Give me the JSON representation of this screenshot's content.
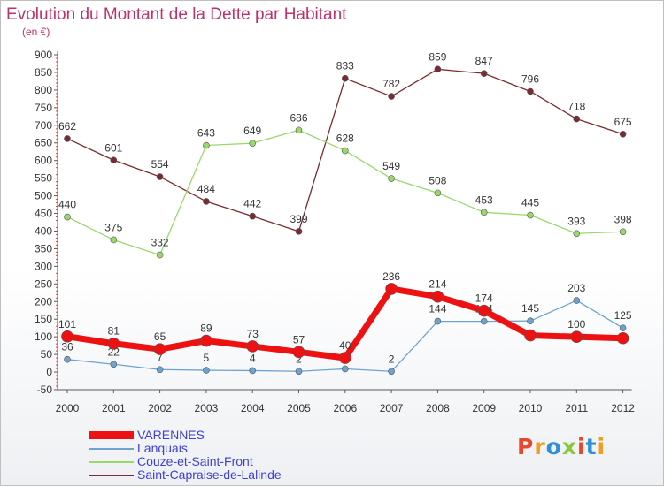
{
  "title": "Evolution du Montant de la Dette par Habitant",
  "subtitle": "(en €)",
  "logo": "Proxiti",
  "logo_colors": [
    "#e8472b",
    "#f39c1f",
    "#2f8fd8",
    "#8cc63f",
    "#e8472b",
    "#2f8fd8",
    "#f39c1f"
  ],
  "chart_data": {
    "type": "line",
    "x": [
      "2000",
      "2001",
      "2002",
      "2003",
      "2004",
      "2005",
      "2006",
      "2007",
      "2008",
      "2009",
      "2010",
      "2011",
      "2012"
    ],
    "ylim": [
      -50,
      900
    ],
    "yticks": [
      -50,
      0,
      50,
      100,
      150,
      200,
      250,
      300,
      350,
      400,
      450,
      500,
      550,
      600,
      650,
      700,
      750,
      800,
      850,
      900
    ],
    "grid": false,
    "legend_position": "bottom-left",
    "series": [
      {
        "name": "Saint-Capraise-de-Lalinde",
        "color": "#7a2b31",
        "width": 1.3,
        "values": [
          662,
          601,
          554,
          484,
          442,
          399,
          833,
          782,
          859,
          847,
          796,
          718,
          675
        ]
      },
      {
        "name": "Couze-et-Saint-Front",
        "color": "#9bd86c",
        "width": 1.3,
        "values": [
          440,
          375,
          332,
          643,
          649,
          686,
          628,
          549,
          508,
          453,
          445,
          393,
          398
        ]
      },
      {
        "name": "Lanquais",
        "color": "#6fa3cf",
        "width": 1.3,
        "values": [
          36,
          22,
          7,
          5,
          4,
          2,
          9,
          2,
          144,
          144,
          145,
          203,
          125
        ]
      },
      {
        "name": "VARENNES",
        "color": "#ee1111",
        "width": 7,
        "values": [
          101,
          81,
          65,
          89,
          73,
          57,
          40,
          236,
          214,
          174,
          104,
          100,
          96
        ]
      }
    ],
    "data_labels": [
      {
        "series": "Saint-Capraise-de-Lalinde",
        "texts": [
          "662",
          "601",
          "554",
          "484",
          "442",
          "399",
          "833",
          "782",
          "859",
          "847",
          "796",
          "718",
          "675"
        ]
      },
      {
        "series": "Couze-et-Saint-Front",
        "texts": [
          "440",
          "375",
          "332",
          "643",
          "649",
          "686",
          "628",
          "549",
          "508",
          "453",
          "445",
          "393",
          "398"
        ]
      },
      {
        "series": "Lanquais",
        "texts": [
          "36",
          "22",
          "7",
          "5",
          "4",
          "2",
          "",
          "2",
          "144",
          "144",
          "145",
          "203",
          "125"
        ]
      },
      {
        "series": "VARENNES",
        "texts": [
          "101",
          "81",
          "65",
          "89",
          "73",
          "57",
          "40",
          "236",
          "214",
          "174",
          "",
          "100",
          ""
        ]
      }
    ]
  },
  "legend": [
    {
      "label": "VARENNES",
      "color": "#ee1111",
      "thick": true
    },
    {
      "label": "Lanquais",
      "color": "#6fa3cf",
      "thick": false
    },
    {
      "label": "Couze-et-Saint-Front",
      "color": "#9bd86c",
      "thick": false
    },
    {
      "label": "Saint-Capraise-de-Lalinde",
      "color": "#7a2b31",
      "thick": false
    }
  ]
}
